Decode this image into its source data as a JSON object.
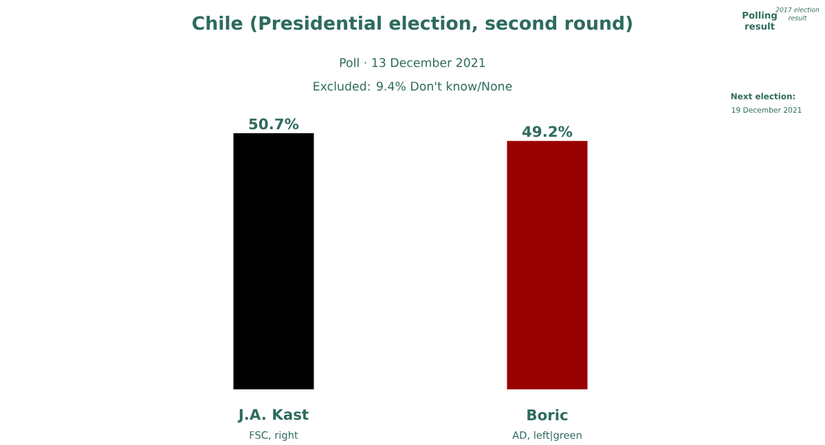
{
  "chart_data": {
    "type": "bar",
    "title": "Chile (Presidential election, second round)",
    "subtitle": "Poll · 13 December 2021",
    "categories": [
      "J.A. Kast",
      "Boric"
    ],
    "values": [
      50.7,
      49.2
    ],
    "colors": [
      "#000000",
      "#990000"
    ],
    "value_labels": [
      "50.7%",
      "49.2%"
    ],
    "annotations": [
      "Excluded: 9.4% Don't know/None",
      "FSC, right",
      "AD, left|green",
      "Polling result",
      "2017 election result",
      "Next election:",
      "19 December 2021"
    ]
  }
}
